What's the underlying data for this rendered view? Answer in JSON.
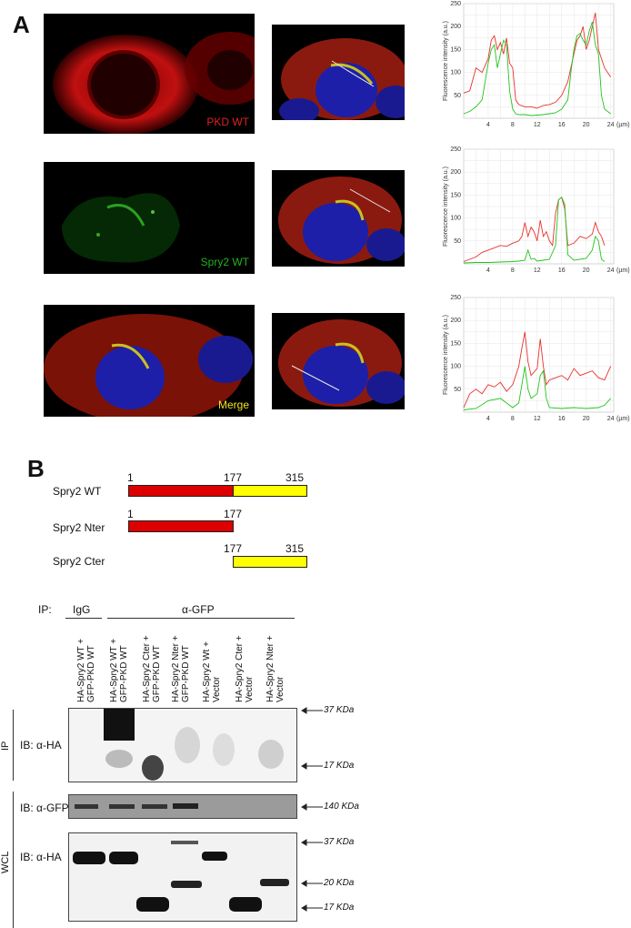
{
  "panels": {
    "a": "A",
    "b": "B"
  },
  "micro_labels": {
    "pkd": "PKD WT",
    "spry": "Spry2 WT",
    "merge": "Merge"
  },
  "colors": {
    "red": "#e8312b",
    "green": "#22c41d",
    "pkd_label": "#e02020",
    "spry_label": "#22b41b",
    "merge_label": "#f2e51d",
    "domain_red": "#dd0000",
    "domain_yellow": "#ffff00"
  },
  "chart_data": [
    {
      "type": "line",
      "ylabel": "Fluorescence intensity (a.u.)",
      "xunit": "(µm)",
      "xticks": [
        4,
        8,
        12,
        16,
        20,
        24
      ],
      "yticks": [
        50,
        100,
        150,
        200,
        250
      ],
      "xlim": [
        0,
        24.5
      ],
      "ylim": [
        0,
        250
      ],
      "series": [
        {
          "color": "red",
          "x": [
            0,
            1,
            2,
            3,
            4,
            4.5,
            5,
            5.5,
            6,
            6.5,
            7,
            7.5,
            8,
            8.5,
            9,
            10,
            11,
            12,
            13,
            14,
            15,
            16,
            17,
            18,
            18.5,
            19,
            19.5,
            20,
            20.5,
            21,
            21.5,
            22,
            22.5,
            23,
            24
          ],
          "y": [
            55,
            60,
            110,
            100,
            130,
            170,
            180,
            150,
            165,
            140,
            175,
            120,
            110,
            40,
            30,
            25,
            25,
            22,
            28,
            30,
            35,
            50,
            80,
            140,
            170,
            180,
            200,
            150,
            170,
            200,
            230,
            150,
            130,
            110,
            90
          ]
        },
        {
          "color": "green",
          "x": [
            0,
            1,
            2,
            3,
            3.5,
            4,
            4.5,
            5,
            5.5,
            6,
            6.5,
            7,
            7.5,
            8,
            8.5,
            9,
            10,
            11,
            12,
            13,
            14,
            15,
            16,
            17,
            17.5,
            18,
            18.5,
            19,
            19.5,
            20,
            20.5,
            21,
            21.5,
            22,
            22.5,
            23,
            24
          ],
          "y": [
            10,
            15,
            25,
            40,
            80,
            120,
            150,
            160,
            110,
            140,
            170,
            160,
            60,
            20,
            10,
            8,
            8,
            6,
            7,
            8,
            10,
            12,
            20,
            40,
            100,
            150,
            180,
            185,
            170,
            160,
            190,
            210,
            160,
            140,
            50,
            20,
            10
          ]
        }
      ]
    },
    {
      "type": "line",
      "ylabel": "Fluorescence intensity (a.u.)",
      "xunit": "(µm)",
      "xticks": [
        4,
        8,
        12,
        16,
        20,
        24
      ],
      "yticks": [
        50,
        100,
        150,
        200,
        250
      ],
      "xlim": [
        0,
        24.5
      ],
      "ylim": [
        0,
        250
      ],
      "series": [
        {
          "color": "red",
          "x": [
            0,
            1,
            2,
            3,
            4,
            5,
            6,
            7,
            8,
            9,
            9.5,
            10,
            10.5,
            11,
            11.5,
            12,
            12.5,
            13,
            13.5,
            14,
            14.5,
            15,
            15.5,
            16,
            16.5,
            17,
            18,
            19,
            20,
            21,
            21.5,
            22,
            22.5,
            23
          ],
          "y": [
            5,
            10,
            15,
            25,
            30,
            35,
            40,
            38,
            45,
            50,
            60,
            90,
            60,
            80,
            70,
            50,
            95,
            60,
            70,
            50,
            40,
            110,
            140,
            145,
            120,
            40,
            45,
            60,
            55,
            65,
            90,
            70,
            60,
            40
          ]
        },
        {
          "color": "green",
          "x": [
            0,
            2,
            4,
            6,
            8,
            9,
            10,
            10.5,
            11,
            11.5,
            12,
            13,
            14,
            15,
            15.5,
            16,
            16.5,
            17,
            18,
            19,
            20,
            21,
            21.5,
            22,
            22.5,
            23
          ],
          "y": [
            2,
            3,
            3,
            4,
            5,
            6,
            8,
            30,
            10,
            12,
            6,
            8,
            10,
            40,
            140,
            145,
            130,
            20,
            8,
            10,
            12,
            30,
            60,
            50,
            10,
            5
          ]
        }
      ]
    },
    {
      "type": "line",
      "ylabel": "Fluorescence intensity (a.u.)",
      "xunit": "(µm)",
      "xticks": [
        4,
        8,
        12,
        16,
        20,
        24
      ],
      "yticks": [
        50,
        100,
        150,
        200,
        250
      ],
      "xlim": [
        0,
        24.5
      ],
      "ylim": [
        0,
        250
      ],
      "series": [
        {
          "color": "red",
          "x": [
            0,
            1,
            2,
            3,
            4,
            5,
            6,
            7,
            8,
            9,
            9.5,
            10,
            10.5,
            11,
            12,
            12.5,
            13,
            13.5,
            14,
            15,
            16,
            17,
            18,
            19,
            20,
            21,
            22,
            23,
            24
          ],
          "y": [
            10,
            40,
            50,
            40,
            60,
            55,
            65,
            45,
            60,
            100,
            140,
            175,
            110,
            80,
            95,
            160,
            100,
            60,
            70,
            75,
            80,
            70,
            95,
            80,
            85,
            90,
            75,
            70,
            100
          ]
        },
        {
          "color": "green",
          "x": [
            0,
            2,
            4,
            6,
            8,
            9,
            9.5,
            10,
            10.5,
            11,
            12,
            12.5,
            13,
            13.5,
            14,
            16,
            18,
            20,
            22,
            23,
            24
          ],
          "y": [
            5,
            8,
            25,
            30,
            10,
            20,
            60,
            100,
            50,
            30,
            40,
            80,
            90,
            30,
            10,
            8,
            10,
            8,
            10,
            15,
            30
          ]
        }
      ]
    }
  ],
  "domains": {
    "rows": [
      {
        "label": "Spry2 WT",
        "start": "1",
        "mid": "177",
        "end": "315"
      },
      {
        "label": "Spry2 Nter",
        "start": "1",
        "end": "177"
      },
      {
        "label": "Spry2 Cter",
        "start": "177",
        "end": "315"
      }
    ]
  },
  "blot": {
    "ip_label": "IP:",
    "igg_label": "IgG",
    "gfp_label": "α-GFP",
    "lanes": [
      [
        "HA-Spry2 WT +",
        "GFP-PKD WT"
      ],
      [
        "HA-Spry2 WT +",
        "GFP-PKD WT"
      ],
      [
        "HA-Spry2 Cter +",
        "GFP-PKD WT"
      ],
      [
        "HA-Spry2 Nter +",
        "GFP-PKD WT"
      ],
      [
        "HA-Spry2 Wt +",
        "Vector"
      ],
      [
        "HA-Spry2 Cter +",
        "Vector"
      ],
      [
        "HA-Spry2 Nter +",
        "Vector"
      ]
    ],
    "side_ip": "IP",
    "side_wcl": "WCL",
    "ib_ha_1": "IB: α-HA",
    "ib_gfp": "IB: α-GFP",
    "ib_ha_2": "IB: α-HA",
    "markers": {
      "m37a": "37 KDa",
      "m17a": "17 KDa",
      "m140": "140 KDa",
      "m37b": "37 KDa",
      "m20": "20 KDa",
      "m17b": "17 KDa"
    }
  }
}
